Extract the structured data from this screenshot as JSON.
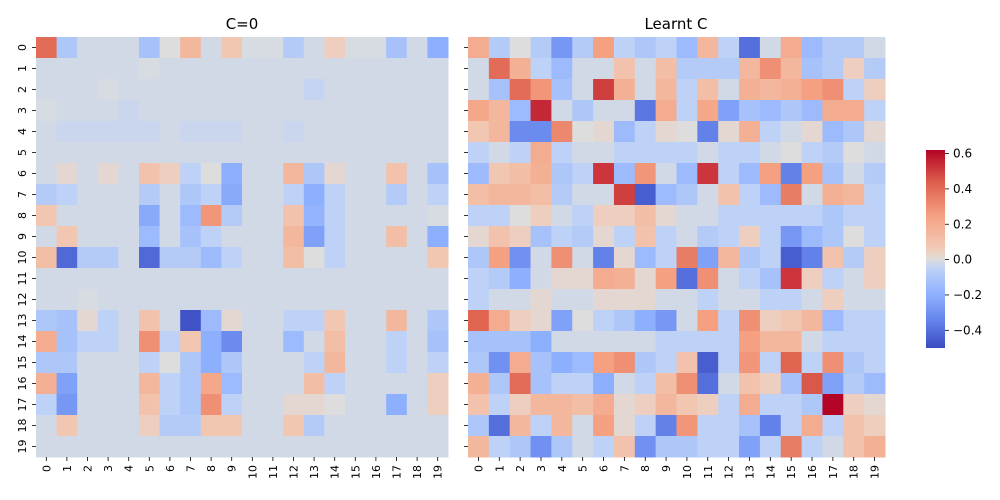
{
  "chart_data": [
    {
      "type": "heatmap",
      "title": "C=0",
      "x": [
        "0",
        "1",
        "2",
        "3",
        "4",
        "5",
        "6",
        "7",
        "8",
        "9",
        "10",
        "11",
        "12",
        "13",
        "14",
        "15",
        "16",
        "17",
        "18",
        "19"
      ],
      "y": [
        "0",
        "1",
        "2",
        "3",
        "4",
        "5",
        "6",
        "7",
        "8",
        "9",
        "10",
        "11",
        "12",
        "13",
        "14",
        "15",
        "16",
        "17",
        "18",
        "19"
      ],
      "z": [
        [
          0.4,
          -0.1,
          -0.02,
          -0.02,
          -0.02,
          -0.12,
          0.0,
          0.15,
          -0.02,
          0.08,
          -0.01,
          -0.01,
          -0.08,
          -0.02,
          0.05,
          -0.01,
          -0.01,
          -0.12,
          -0.02,
          -0.2
        ],
        [
          -0.02,
          -0.02,
          -0.02,
          -0.02,
          -0.02,
          -0.01,
          -0.02,
          -0.02,
          -0.02,
          -0.02,
          -0.02,
          -0.02,
          -0.02,
          -0.02,
          -0.02,
          -0.02,
          -0.02,
          -0.02,
          -0.02,
          -0.02
        ],
        [
          -0.02,
          -0.02,
          -0.02,
          -0.01,
          -0.02,
          -0.02,
          -0.02,
          -0.02,
          -0.02,
          -0.02,
          -0.02,
          -0.02,
          -0.02,
          -0.04,
          -0.02,
          -0.02,
          -0.02,
          -0.02,
          -0.02,
          -0.02
        ],
        [
          -0.01,
          -0.02,
          -0.02,
          -0.02,
          -0.03,
          -0.02,
          -0.02,
          -0.02,
          -0.02,
          -0.02,
          -0.02,
          -0.02,
          -0.02,
          -0.02,
          -0.02,
          -0.02,
          -0.02,
          -0.02,
          -0.02,
          -0.02
        ],
        [
          -0.02,
          -0.03,
          -0.03,
          -0.03,
          -0.03,
          -0.03,
          -0.02,
          -0.03,
          -0.03,
          -0.03,
          -0.02,
          -0.02,
          -0.03,
          -0.02,
          -0.02,
          -0.02,
          -0.02,
          -0.02,
          -0.02,
          -0.02
        ],
        [
          -0.02,
          -0.02,
          -0.02,
          -0.02,
          -0.02,
          -0.02,
          -0.02,
          -0.02,
          -0.02,
          -0.02,
          -0.02,
          -0.02,
          -0.02,
          -0.02,
          -0.02,
          -0.02,
          -0.02,
          -0.02,
          -0.02,
          -0.02
        ],
        [
          -0.02,
          0.02,
          -0.02,
          0.02,
          -0.02,
          0.1,
          0.05,
          -0.05,
          0.0,
          -0.2,
          -0.02,
          -0.02,
          0.15,
          -0.1,
          0.02,
          -0.02,
          -0.02,
          0.1,
          -0.02,
          -0.12
        ],
        [
          -0.08,
          -0.05,
          -0.02,
          -0.02,
          -0.02,
          -0.08,
          -0.02,
          -0.1,
          -0.05,
          -0.22,
          -0.02,
          -0.02,
          -0.05,
          -0.2,
          -0.05,
          -0.02,
          -0.02,
          -0.08,
          -0.02,
          -0.05
        ],
        [
          0.08,
          -0.02,
          -0.02,
          -0.02,
          -0.02,
          -0.22,
          -0.02,
          -0.15,
          0.28,
          -0.08,
          -0.02,
          -0.02,
          0.1,
          -0.18,
          -0.05,
          -0.02,
          -0.02,
          -0.02,
          -0.02,
          -0.01
        ],
        [
          -0.02,
          0.08,
          -0.02,
          -0.02,
          -0.02,
          -0.15,
          -0.02,
          -0.12,
          -0.05,
          -0.02,
          -0.02,
          -0.02,
          0.15,
          -0.25,
          -0.05,
          -0.02,
          -0.02,
          0.12,
          -0.02,
          -0.2
        ],
        [
          0.12,
          -0.42,
          -0.08,
          -0.08,
          -0.02,
          -0.42,
          -0.08,
          -0.08,
          -0.15,
          -0.05,
          -0.02,
          -0.02,
          0.12,
          0.0,
          -0.05,
          -0.02,
          -0.02,
          -0.02,
          -0.02,
          0.08
        ],
        [
          -0.02,
          -0.02,
          -0.02,
          -0.02,
          -0.02,
          -0.02,
          -0.02,
          -0.02,
          -0.02,
          -0.02,
          -0.02,
          -0.02,
          -0.02,
          -0.02,
          -0.02,
          -0.02,
          -0.02,
          -0.02,
          -0.02,
          -0.02
        ],
        [
          -0.02,
          -0.02,
          -0.01,
          -0.02,
          -0.02,
          -0.02,
          -0.02,
          -0.02,
          -0.02,
          -0.02,
          -0.02,
          -0.02,
          -0.02,
          -0.02,
          -0.02,
          -0.02,
          -0.02,
          -0.02,
          -0.02,
          -0.02
        ],
        [
          -0.1,
          -0.12,
          0.02,
          -0.05,
          -0.02,
          0.1,
          -0.02,
          -0.48,
          -0.15,
          0.02,
          -0.02,
          -0.02,
          -0.05,
          -0.05,
          0.08,
          -0.02,
          -0.02,
          0.15,
          -0.02,
          -0.1
        ],
        [
          0.2,
          -0.12,
          -0.05,
          -0.05,
          -0.02,
          0.3,
          -0.05,
          0.08,
          -0.2,
          -0.32,
          -0.02,
          -0.02,
          -0.15,
          -0.02,
          0.12,
          -0.02,
          -0.02,
          -0.05,
          -0.02,
          -0.12
        ],
        [
          -0.1,
          -0.1,
          -0.02,
          -0.02,
          -0.02,
          -0.05,
          0.0,
          -0.1,
          -0.2,
          -0.1,
          -0.02,
          -0.02,
          -0.02,
          -0.05,
          0.15,
          -0.02,
          -0.02,
          -0.05,
          -0.02,
          -0.05
        ],
        [
          0.18,
          -0.25,
          -0.02,
          -0.02,
          -0.02,
          0.15,
          -0.05,
          -0.1,
          0.22,
          -0.15,
          -0.02,
          -0.02,
          -0.02,
          0.12,
          -0.05,
          -0.02,
          -0.02,
          -0.02,
          -0.02,
          0.05
        ],
        [
          -0.05,
          -0.28,
          -0.02,
          -0.02,
          -0.02,
          0.1,
          -0.05,
          -0.1,
          0.3,
          -0.05,
          -0.02,
          -0.02,
          0.02,
          0.02,
          0.0,
          -0.02,
          -0.02,
          -0.2,
          -0.02,
          0.05
        ],
        [
          -0.02,
          0.08,
          -0.02,
          -0.02,
          -0.02,
          0.05,
          -0.08,
          -0.08,
          0.08,
          0.08,
          -0.02,
          -0.02,
          0.08,
          -0.08,
          -0.02,
          -0.02,
          -0.02,
          -0.02,
          -0.02,
          -0.02
        ],
        [
          -0.02,
          -0.02,
          -0.02,
          -0.02,
          -0.02,
          -0.02,
          -0.02,
          -0.02,
          -0.02,
          -0.02,
          -0.02,
          -0.02,
          -0.02,
          -0.02,
          -0.02,
          -0.02,
          -0.02,
          -0.02,
          -0.02,
          -0.02
        ]
      ]
    },
    {
      "type": "heatmap",
      "title": "Learnt C",
      "x": [
        "0",
        "1",
        "2",
        "3",
        "4",
        "5",
        "6",
        "7",
        "8",
        "9",
        "10",
        "11",
        "12",
        "13",
        "14",
        "15",
        "16",
        "17",
        "18",
        "19"
      ],
      "y": [
        "0",
        "1",
        "2",
        "3",
        "4",
        "5",
        "6",
        "7",
        "8",
        "9",
        "10",
        "11",
        "12",
        "13",
        "14",
        "15",
        "16",
        "17",
        "18",
        "19"
      ],
      "z": [
        [
          0.2,
          -0.08,
          0.0,
          -0.08,
          -0.28,
          -0.08,
          0.25,
          -0.05,
          -0.1,
          -0.05,
          -0.15,
          0.15,
          -0.05,
          -0.4,
          -0.02,
          0.2,
          -0.15,
          -0.08,
          -0.08,
          -0.02
        ],
        [
          -0.02,
          0.4,
          0.18,
          -0.05,
          -0.15,
          -0.02,
          -0.02,
          0.1,
          -0.02,
          0.12,
          -0.08,
          -0.08,
          -0.08,
          0.15,
          0.3,
          0.15,
          -0.12,
          -0.08,
          0.05,
          -0.08
        ],
        [
          -0.02,
          -0.12,
          0.4,
          0.28,
          -0.12,
          -0.02,
          0.5,
          0.18,
          -0.02,
          0.15,
          -0.05,
          0.12,
          -0.02,
          0.18,
          0.15,
          0.18,
          0.25,
          0.3,
          -0.05,
          0.05
        ],
        [
          0.22,
          0.15,
          -0.15,
          0.55,
          -0.02,
          -0.1,
          -0.02,
          -0.02,
          -0.38,
          0.2,
          -0.05,
          0.22,
          -0.25,
          -0.12,
          -0.15,
          -0.1,
          -0.15,
          0.2,
          0.2,
          -0.05
        ],
        [
          0.08,
          0.15,
          -0.32,
          -0.32,
          0.32,
          0.0,
          0.02,
          -0.15,
          -0.05,
          0.02,
          0.0,
          -0.35,
          0.02,
          0.18,
          -0.05,
          -0.02,
          0.02,
          -0.15,
          -0.1,
          0.02
        ],
        [
          -0.05,
          -0.02,
          -0.05,
          0.2,
          -0.05,
          -0.02,
          -0.02,
          -0.05,
          -0.05,
          -0.05,
          -0.05,
          -0.02,
          -0.05,
          -0.05,
          -0.02,
          0.0,
          -0.05,
          -0.08,
          0.0,
          -0.02
        ],
        [
          -0.15,
          0.08,
          0.12,
          0.18,
          -0.1,
          -0.05,
          0.52,
          -0.15,
          0.28,
          -0.02,
          -0.15,
          0.52,
          -0.05,
          -0.15,
          0.25,
          -0.35,
          0.25,
          -0.12,
          -0.02,
          -0.08
        ],
        [
          0.12,
          0.15,
          0.15,
          0.12,
          -0.08,
          -0.02,
          -0.02,
          0.5,
          -0.45,
          -0.15,
          -0.1,
          -0.02,
          0.1,
          -0.05,
          -0.15,
          0.35,
          -0.02,
          0.18,
          0.15,
          -0.05
        ],
        [
          -0.05,
          -0.05,
          0.0,
          0.05,
          -0.02,
          -0.05,
          0.05,
          0.05,
          0.12,
          0.02,
          -0.02,
          -0.02,
          -0.05,
          -0.05,
          -0.05,
          -0.05,
          -0.05,
          -0.1,
          -0.05,
          -0.05
        ],
        [
          0.02,
          0.1,
          0.05,
          -0.12,
          -0.05,
          -0.08,
          0.02,
          -0.05,
          0.1,
          -0.05,
          -0.02,
          -0.08,
          -0.05,
          0.05,
          -0.05,
          -0.28,
          -0.15,
          -0.1,
          0.0,
          -0.05
        ],
        [
          -0.1,
          0.25,
          -0.3,
          -0.02,
          0.3,
          -0.02,
          -0.35,
          0.02,
          -0.15,
          -0.05,
          0.35,
          -0.25,
          0.15,
          -0.1,
          -0.05,
          -0.45,
          -0.35,
          0.1,
          -0.08,
          0.05
        ],
        [
          -0.05,
          -0.08,
          -0.2,
          -0.02,
          0.02,
          0.02,
          0.2,
          0.18,
          0.02,
          0.25,
          -0.4,
          0.3,
          -0.02,
          -0.05,
          -0.12,
          0.52,
          0.05,
          -0.05,
          -0.02,
          0.05
        ],
        [
          -0.05,
          -0.02,
          -0.02,
          0.02,
          -0.02,
          -0.02,
          0.02,
          0.02,
          0.02,
          -0.02,
          -0.02,
          -0.05,
          -0.02,
          -0.02,
          -0.05,
          -0.05,
          -0.02,
          0.05,
          -0.02,
          -0.02
        ],
        [
          0.42,
          0.2,
          0.05,
          0.02,
          -0.25,
          0.0,
          -0.05,
          -0.1,
          -0.2,
          -0.28,
          -0.02,
          0.25,
          -0.05,
          0.3,
          0.05,
          0.08,
          0.15,
          -0.15,
          -0.05,
          -0.05
        ],
        [
          -0.12,
          -0.12,
          -0.12,
          -0.2,
          -0.02,
          -0.02,
          -0.02,
          -0.02,
          -0.02,
          -0.05,
          -0.05,
          -0.05,
          -0.05,
          0.25,
          0.15,
          0.15,
          -0.02,
          -0.05,
          -0.05,
          -0.05
        ],
        [
          -0.1,
          -0.3,
          0.2,
          -0.12,
          -0.2,
          -0.15,
          0.25,
          0.3,
          -0.1,
          -0.05,
          0.1,
          -0.45,
          -0.05,
          0.28,
          -0.05,
          0.42,
          -0.05,
          0.3,
          -0.1,
          -0.05
        ],
        [
          0.18,
          -0.1,
          0.4,
          -0.12,
          -0.05,
          -0.05,
          -0.2,
          -0.02,
          -0.05,
          0.12,
          0.3,
          -0.4,
          -0.02,
          0.1,
          0.05,
          -0.12,
          0.45,
          -0.25,
          -0.08,
          -0.15
        ],
        [
          0.1,
          -0.05,
          0.05,
          0.15,
          0.15,
          0.12,
          0.2,
          0.02,
          0.05,
          0.15,
          0.08,
          0.05,
          -0.05,
          0.2,
          -0.05,
          -0.05,
          -0.1,
          0.62,
          0.05,
          0.02
        ],
        [
          -0.1,
          -0.4,
          0.15,
          -0.05,
          0.15,
          -0.02,
          0.25,
          0.02,
          -0.05,
          -0.35,
          0.28,
          -0.05,
          -0.05,
          -0.12,
          -0.35,
          -0.05,
          0.2,
          -0.05,
          0.1,
          0.05
        ],
        [
          0.15,
          -0.05,
          -0.1,
          -0.3,
          -0.1,
          -0.02,
          -0.05,
          0.1,
          -0.3,
          -0.1,
          -0.1,
          -0.05,
          -0.05,
          -0.25,
          -0.05,
          0.35,
          -0.05,
          -0.02,
          0.1,
          0.18
        ]
      ]
    }
  ],
  "colorbar": {
    "vmin": -0.5,
    "vmax": 0.62,
    "ticks": [
      "0.6",
      "0.4",
      "0.2",
      "0.0",
      "−0.2",
      "−0.4"
    ],
    "tick_values": [
      0.6,
      0.4,
      0.2,
      0.0,
      -0.2,
      -0.4
    ],
    "colormap": "coolwarm"
  }
}
